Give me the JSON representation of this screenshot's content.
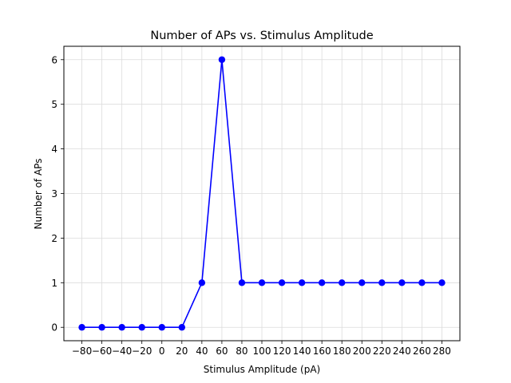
{
  "chart_data": {
    "type": "line",
    "title": "Number of APs vs. Stimulus Amplitude",
    "xlabel": "Stimulus Amplitude (pA)",
    "ylabel": "Number of APs",
    "x": [
      -80,
      -60,
      -40,
      -20,
      0,
      20,
      40,
      60,
      80,
      100,
      120,
      140,
      160,
      180,
      200,
      220,
      240,
      260,
      280
    ],
    "series": [
      {
        "values": [
          0,
          0,
          0,
          0,
          0,
          0,
          1,
          6,
          1,
          1,
          1,
          1,
          1,
          1,
          1,
          1,
          1,
          1,
          1
        ]
      }
    ],
    "xticks": [
      -80,
      -60,
      -40,
      -20,
      0,
      20,
      40,
      60,
      80,
      100,
      120,
      140,
      160,
      180,
      200,
      220,
      240,
      260,
      280
    ],
    "yticks": [
      0,
      1,
      2,
      3,
      4,
      5,
      6
    ],
    "xtick_labels": [
      "−80",
      "−60",
      "−40",
      "−20",
      "0",
      "20",
      "40",
      "60",
      "80",
      "100",
      "120",
      "140",
      "160",
      "180",
      "200",
      "220",
      "240",
      "260",
      "280"
    ],
    "ytick_labels": [
      "0",
      "1",
      "2",
      "3",
      "4",
      "5",
      "6"
    ],
    "xlim": [
      -98,
      298
    ],
    "ylim": [
      -0.3,
      6.3
    ],
    "grid": true,
    "marker": "circle",
    "line_color": "#0000ff",
    "grid_color": "#dcdcdc"
  }
}
